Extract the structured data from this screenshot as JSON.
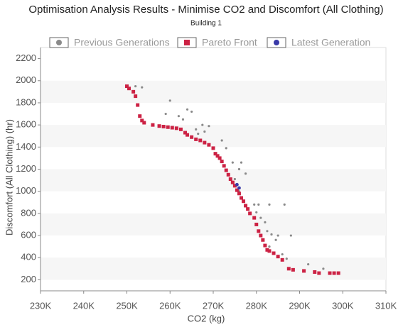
{
  "chart_data": {
    "type": "scatter",
    "title": "Optimisation Analysis Results - Minimise CO2 and Discomfort (All Clothing)",
    "subtitle": "Building 1",
    "x_label": "CO2 (kg)",
    "y_label": "Discomfort (All Clothing) (hr)",
    "xlim": [
      230000,
      310000
    ],
    "ylim": [
      100,
      2300
    ],
    "xticks": [
      {
        "value": 230000,
        "label": "230K"
      },
      {
        "value": 240000,
        "label": "240K"
      },
      {
        "value": 250000,
        "label": "250K"
      },
      {
        "value": 260000,
        "label": "260K"
      },
      {
        "value": 270000,
        "label": "270K"
      },
      {
        "value": 280000,
        "label": "280K"
      },
      {
        "value": 290000,
        "label": "290K"
      },
      {
        "value": 300000,
        "label": "300K"
      },
      {
        "value": 310000,
        "label": "310K"
      }
    ],
    "yticks": [
      200,
      400,
      600,
      800,
      1000,
      1200,
      1400,
      1600,
      1800,
      2000,
      2200
    ],
    "legend": "top",
    "series": [
      {
        "name": "Previous Generations",
        "color": "#8a8a8a",
        "marker": "circle",
        "x": [
          253500,
          252000,
          259000,
          260000,
          262000,
          264000,
          263000,
          265000,
          266000,
          267500,
          268000,
          269000,
          266500,
          272000,
          273000,
          274500,
          276000,
          276500,
          277500,
          275000,
          276000,
          279500,
          280500,
          283000,
          286500,
          280000,
          281000,
          282000,
          282500,
          283500,
          285000,
          288000,
          284500,
          286000,
          287000,
          292000,
          295500,
          283000
        ],
        "values": [
          1940,
          1950,
          1700,
          1820,
          1680,
          1740,
          1650,
          1720,
          1560,
          1600,
          1540,
          1590,
          1520,
          1460,
          1390,
          1260,
          1200,
          1260,
          1160,
          1110,
          1000,
          880,
          880,
          880,
          880,
          810,
          760,
          720,
          640,
          610,
          600,
          600,
          560,
          430,
          390,
          340,
          300,
          500
        ]
      },
      {
        "name": "Pareto Front",
        "color": "#cc2244",
        "marker": "square",
        "x": [
          250000,
          250500,
          251500,
          252000,
          252500,
          253000,
          253500,
          254000,
          256000,
          257500,
          258500,
          259500,
          260500,
          261500,
          262500,
          263500,
          264000,
          265000,
          266000,
          267000,
          268000,
          269000,
          270000,
          270500,
          271000,
          271500,
          272000,
          272500,
          273000,
          273500,
          274000,
          274500,
          275000,
          275500,
          276000,
          276500,
          277000,
          277500,
          278000,
          278500,
          279500,
          280000,
          280500,
          281000,
          281500,
          282000,
          282500,
          283000,
          284000,
          285000,
          286000,
          287500,
          288500,
          291000,
          293500,
          294500,
          297000,
          298000,
          299000
        ],
        "values": [
          1950,
          1930,
          1900,
          1860,
          1780,
          1680,
          1640,
          1620,
          1600,
          1590,
          1585,
          1580,
          1575,
          1570,
          1560,
          1530,
          1510,
          1490,
          1470,
          1460,
          1440,
          1420,
          1390,
          1340,
          1320,
          1300,
          1270,
          1230,
          1190,
          1150,
          1110,
          1080,
          1050,
          1010,
          980,
          940,
          910,
          870,
          840,
          800,
          760,
          700,
          640,
          600,
          560,
          510,
          470,
          460,
          440,
          410,
          380,
          300,
          290,
          280,
          270,
          260,
          260,
          260,
          260
        ]
      },
      {
        "name": "Latest Generation",
        "color": "#3a3aa8",
        "marker": "circle",
        "x": [
          275500,
          276000
        ],
        "values": [
          1060,
          1030
        ]
      }
    ]
  }
}
